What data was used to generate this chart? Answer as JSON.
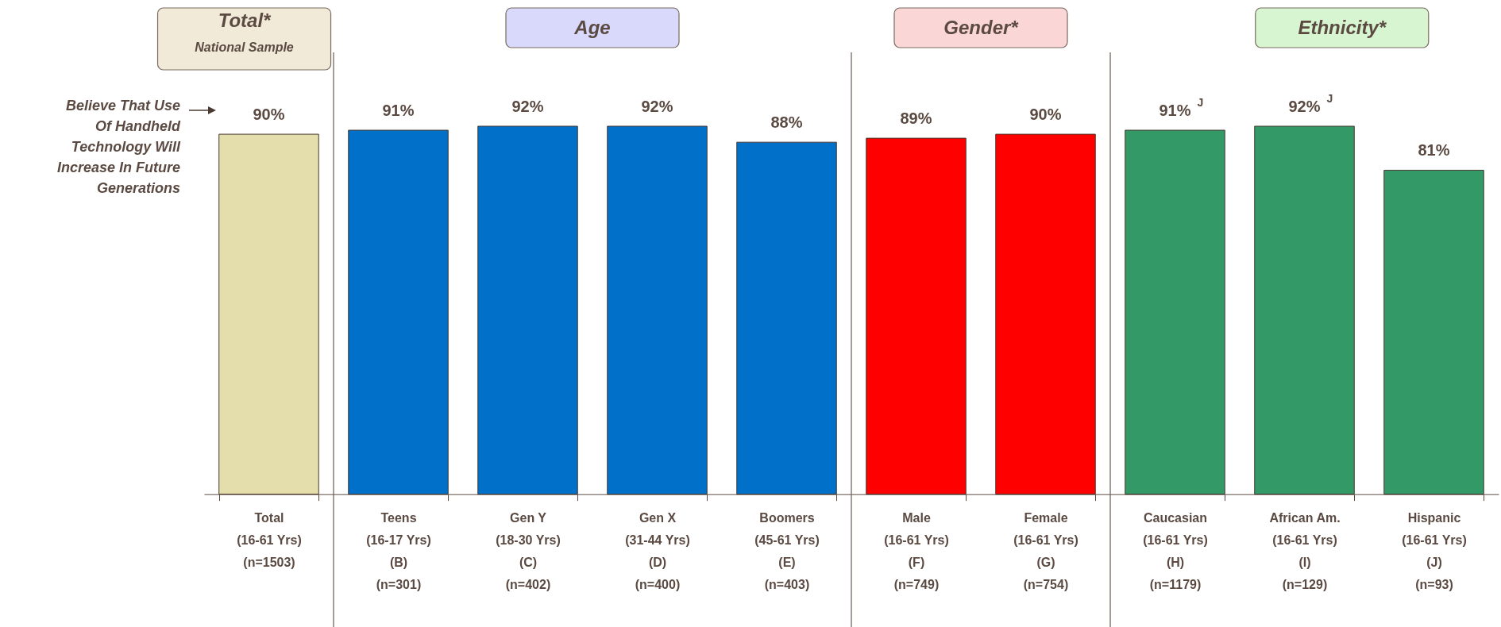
{
  "chart_data": {
    "type": "bar",
    "categories": [
      "Total\n(16-61 Yrs)\n\n(n=1503)",
      "Teens\n(16-17 Yrs)\n(B)\n(n=301)",
      "Gen Y\n(18-30 Yrs)\n(C)\n(n=402)",
      "Gen X\n(31-44 Yrs)\n(D)\n(n=400)",
      "Boomers\n(45-61 Yrs)\n(E)\n(n=403)",
      "Male\n(16-61 Yrs)\n(F)\n(n=749)",
      "Female\n(16-61 Yrs)\n(G)\n(n=754)",
      "Caucasian\n(16-61 Yrs)\n(H)\n(n=1179)",
      "African Am.\n(16-61 Yrs)\n(I)\n(n=129)",
      "Hispanic\n(16-61 Yrs)\n(J)\n(n=93)"
    ],
    "values": [
      90,
      91,
      92,
      92,
      88,
      89,
      90,
      91,
      92,
      81
    ],
    "colors": [
      "#e3deab",
      "#0070c8",
      "#0070c8",
      "#0070c8",
      "#0070c8",
      "#ff0000",
      "#ff0000",
      "#339966",
      "#339966",
      "#339966"
    ],
    "value_labels": [
      "90%",
      "91%",
      "92%",
      "92%",
      "88%",
      "89%",
      "90%",
      "91%$^{J}$",
      "92%$^{J}$",
      "81%"
    ],
    "annotations": [
      "Believe That Use Of Handheld Technology Will Increase In Future Generations",
      "Total*",
      "National Sample",
      "Age",
      "Gender*",
      "Ethnicity*"
    ],
    "tick_labels": "x"
  }
}
